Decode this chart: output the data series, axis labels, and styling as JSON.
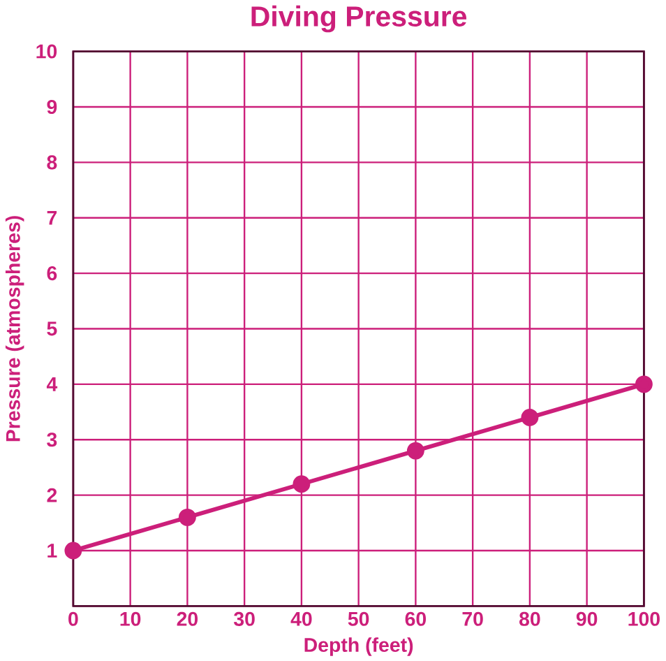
{
  "chart_data": {
    "type": "line",
    "title": "Diving Pressure",
    "xlabel": "Depth (feet)",
    "ylabel": "Pressure (atmospheres)",
    "x": [
      0,
      20,
      40,
      60,
      80,
      100
    ],
    "series": [
      {
        "color": "#cc1f7a",
        "values": [
          1,
          1.6,
          2.2,
          2.8,
          3.4,
          4
        ]
      }
    ],
    "xlim": [
      0,
      100
    ],
    "ylim": [
      0,
      10
    ],
    "xticks": [
      0,
      10,
      20,
      30,
      40,
      50,
      60,
      70,
      80,
      90,
      100
    ],
    "yticks": [
      {
        "value": 0,
        "label": null
      },
      1,
      2,
      3,
      4,
      5,
      6,
      7,
      8,
      9,
      10
    ],
    "grid": true,
    "marker": "circle",
    "line_style": "solid"
  }
}
